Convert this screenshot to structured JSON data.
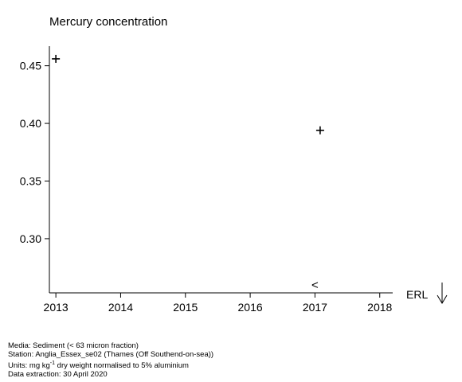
{
  "chart_data": {
    "type": "scatter",
    "title": "Mercury concentration",
    "xlim": [
      2012.9,
      2018.2
    ],
    "ylim": [
      0.253,
      0.467
    ],
    "x_ticks": [
      2013,
      2014,
      2015,
      2016,
      2017,
      2018
    ],
    "y_ticks": [
      0.3,
      0.35,
      0.4,
      0.45
    ],
    "y_tick_labels": [
      "0.30",
      "0.35",
      "0.40",
      "0.45"
    ],
    "points": [
      {
        "x": 2013.0,
        "y": 0.456,
        "marker": "+"
      },
      {
        "x": 2017.08,
        "y": 0.394,
        "marker": "+"
      },
      {
        "x": 2017.0,
        "y": 0.26,
        "marker": "<"
      }
    ],
    "reference_line": {
      "label": "ERL",
      "marker": "down-arrow",
      "note": "off scale (above)"
    },
    "grid": false
  },
  "footer": {
    "media": "Media: Sediment (< 63 micron fraction)",
    "station": "Station: Anglia_Essex_se02 (Thames (Off Southend-on-sea))",
    "units_prefix": "Units:  mg kg",
    "units_sup": "-1",
    "units_suffix": " dry weight normalised to 5% aluminium",
    "extraction": "Data extraction: 30 April 2020"
  }
}
